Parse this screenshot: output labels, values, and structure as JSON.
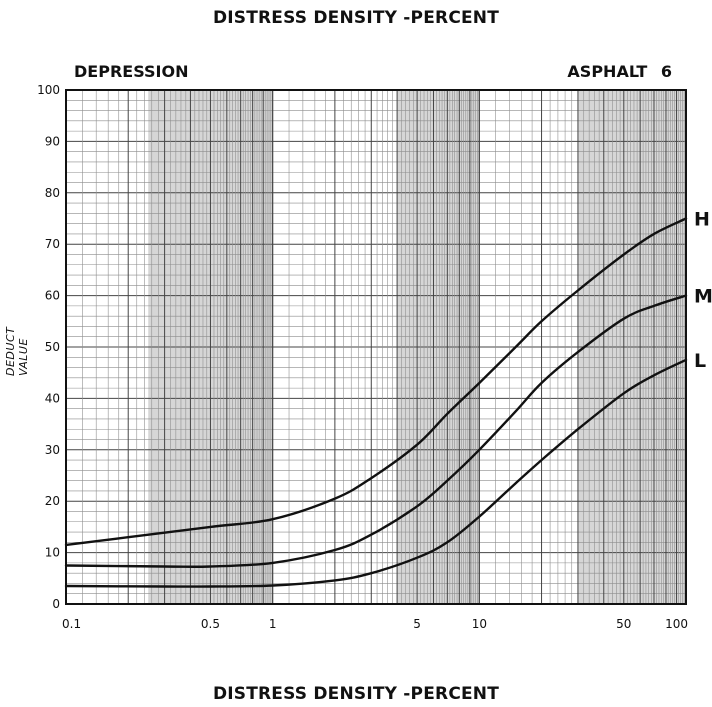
{
  "header": {
    "title_top": "DISTRESS DENSITY -PERCENT",
    "title_bottom": "DISTRESS DENSITY -PERCENT"
  },
  "chart_data": {
    "type": "line",
    "title": "DISTRESS DENSITY -PERCENT",
    "subtitle_left": "DEPRESSION",
    "subtitle_right": "ASPHALT 6",
    "xlabel": "DISTRESS DENSITY -PERCENT",
    "ylabel": "DEDUCT VALUE",
    "x_scale": "log",
    "xlim": [
      0.1,
      100
    ],
    "ylim": [
      0,
      100
    ],
    "x_ticks": [
      0.1,
      0.5,
      1,
      5,
      10,
      50,
      100
    ],
    "x_tick_labels": [
      "0.1",
      "0.5",
      "1",
      "5",
      "10",
      "50",
      "100"
    ],
    "y_ticks": [
      0,
      10,
      20,
      30,
      40,
      50,
      60,
      70,
      80,
      90,
      100
    ],
    "y_tick_labels": [
      "0",
      "10",
      "20",
      "30",
      "40",
      "50",
      "60",
      "70",
      "80",
      "90",
      "100"
    ],
    "grid": true,
    "series": [
      {
        "name": "H",
        "x": [
          0.1,
          0.2,
          0.5,
          1,
          2,
          3,
          5,
          7,
          10,
          15,
          20,
          30,
          50,
          70,
          100
        ],
        "y": [
          11.5,
          13,
          15,
          16.5,
          20.5,
          24.5,
          31,
          37,
          43,
          50,
          55,
          61,
          68,
          72,
          75
        ]
      },
      {
        "name": "M",
        "x": [
          0.1,
          0.3,
          0.5,
          1,
          2,
          3,
          5,
          7,
          10,
          15,
          20,
          30,
          50,
          70,
          100
        ],
        "y": [
          7.5,
          7.3,
          7.3,
          8,
          10.5,
          13.5,
          19,
          24,
          30,
          37.5,
          43,
          49,
          55.5,
          58,
          60
        ]
      },
      {
        "name": "L",
        "x": [
          0.1,
          0.3,
          0.5,
          1,
          2,
          3,
          5,
          7,
          10,
          15,
          20,
          30,
          50,
          70,
          100
        ],
        "y": [
          3.5,
          3.4,
          3.4,
          3.6,
          4.6,
          6,
          9,
          12,
          17,
          23.5,
          28,
          34,
          41,
          44.5,
          47.5
        ]
      }
    ]
  }
}
